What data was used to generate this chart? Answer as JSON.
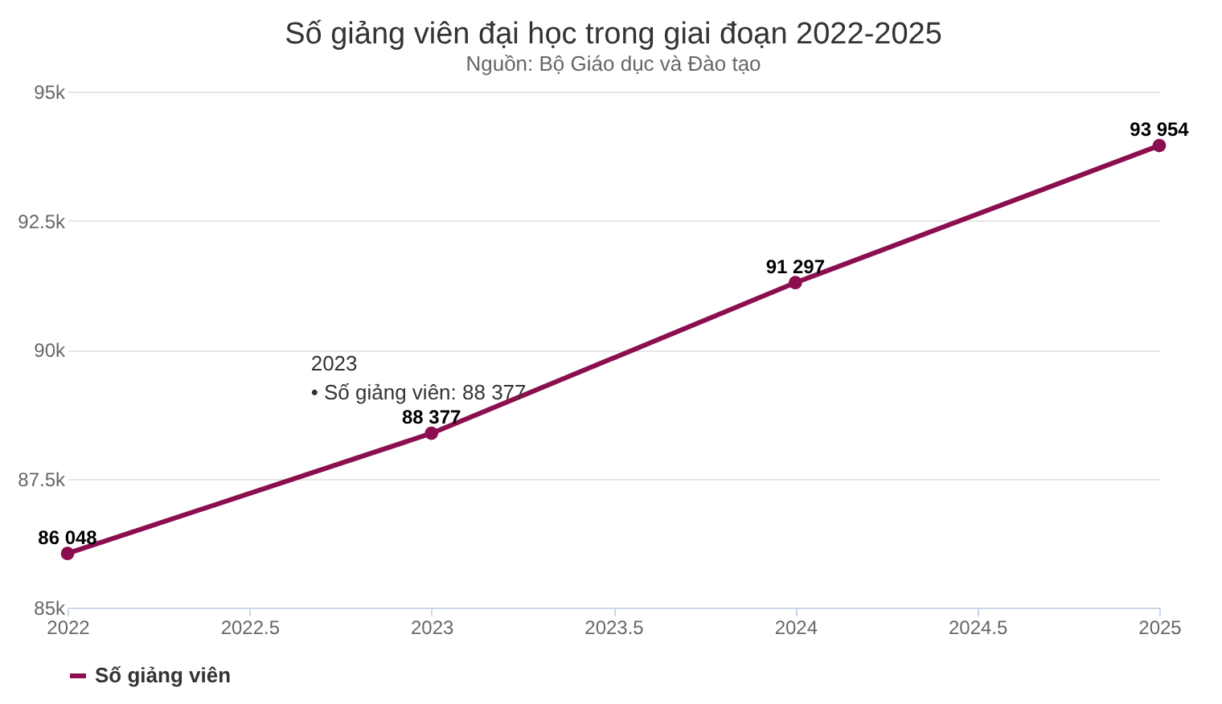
{
  "chart_data": {
    "type": "line",
    "title": "Số giảng viên đại học trong giai đoạn 2022-2025",
    "subtitle": "Nguồn: Bộ Giáo dục và Đào tạo",
    "x": [
      2022,
      2023,
      2024,
      2025
    ],
    "series": [
      {
        "name": "Số giảng viên",
        "color": "#8b0e4f",
        "values": [
          86048,
          88377,
          91297,
          93954
        ],
        "value_labels": [
          "86 048",
          "88 377",
          "91 297",
          "93 954"
        ]
      }
    ],
    "xlim": [
      2022,
      2025
    ],
    "xticks": [
      2022,
      2022.5,
      2023,
      2023.5,
      2024,
      2024.5,
      2025
    ],
    "ylim": [
      85000,
      95000
    ],
    "yticks": [
      {
        "value": 85000,
        "label": "85k"
      },
      {
        "value": 87500,
        "label": "87.5k"
      },
      {
        "value": 90000,
        "label": "90k"
      },
      {
        "value": 92500,
        "label": "92.5k"
      },
      {
        "value": 95000,
        "label": "95k"
      }
    ],
    "annotations": [
      {
        "text": "2023\n• Số giảng viên: 88 377",
        "x": 2023,
        "y": 88377
      }
    ],
    "grid": "y",
    "legend": "bottom",
    "marker": "circle",
    "line_style": "solid"
  }
}
